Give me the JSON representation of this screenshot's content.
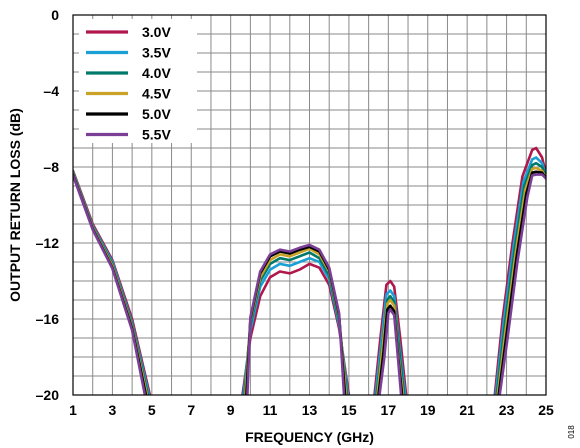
{
  "chart_data": {
    "type": "line",
    "xlabel": "FREQUENCY (GHz)",
    "ylabel": "OUTPUT RETURN LOSS (dB)",
    "xlim": [
      1,
      25
    ],
    "ylim": [
      -20,
      0
    ],
    "x_ticks": [
      1,
      3,
      5,
      7,
      9,
      11,
      13,
      15,
      17,
      19,
      21,
      23,
      25
    ],
    "y_ticks": [
      0,
      -4,
      -8,
      -12,
      -16,
      -20
    ],
    "x_tick_labels": [
      "1",
      "3",
      "5",
      "7",
      "9",
      "11",
      "13",
      "15",
      "17",
      "19",
      "21",
      "23",
      "25"
    ],
    "y_tick_labels": [
      "0",
      "–4",
      "–8",
      "–12",
      "–16",
      "–20"
    ],
    "grid": true,
    "legend_position": "top-left",
    "figure_code": "018",
    "series": [
      {
        "name": "3.0V",
        "color": "#b0174d",
        "segments": [
          [
            [
              1,
              -8.2
            ],
            [
              2,
              -11
            ],
            [
              3,
              -12.9
            ],
            [
              4,
              -16
            ],
            [
              4.9,
              -20
            ]
          ],
          [
            [
              9.6,
              -20
            ],
            [
              10,
              -17
            ],
            [
              10.5,
              -14.8
            ],
            [
              11,
              -13.8
            ],
            [
              11.5,
              -13.5
            ],
            [
              12,
              -13.6
            ],
            [
              12.5,
              -13.4
            ],
            [
              13,
              -13.1
            ],
            [
              13.5,
              -13.3
            ],
            [
              14,
              -14.2
            ],
            [
              14.5,
              -16.5
            ],
            [
              15,
              -20
            ]
          ],
          [
            [
              16.3,
              -20
            ],
            [
              16.6,
              -17
            ],
            [
              16.9,
              -14.2
            ],
            [
              17.1,
              -14
            ],
            [
              17.3,
              -14.3
            ],
            [
              17.6,
              -17
            ],
            [
              17.9,
              -20
            ]
          ],
          [
            [
              22.4,
              -20
            ],
            [
              22.8,
              -16
            ],
            [
              23.3,
              -12
            ],
            [
              23.8,
              -8.5
            ],
            [
              24.3,
              -7.1
            ],
            [
              24.5,
              -7
            ],
            [
              24.8,
              -7.5
            ],
            [
              25,
              -8.4
            ]
          ]
        ]
      },
      {
        "name": "3.5V",
        "color": "#1aa0d4",
        "segments": [
          [
            [
              1,
              -8.25
            ],
            [
              2,
              -11.1
            ],
            [
              3,
              -13
            ],
            [
              4,
              -16.2
            ],
            [
              4.85,
              -20
            ]
          ],
          [
            [
              9.65,
              -20
            ],
            [
              10,
              -16.6
            ],
            [
              10.5,
              -14.3
            ],
            [
              11,
              -13.4
            ],
            [
              11.5,
              -13.1
            ],
            [
              12,
              -13.2
            ],
            [
              12.5,
              -13
            ],
            [
              13,
              -12.8
            ],
            [
              13.5,
              -13
            ],
            [
              14,
              -13.9
            ],
            [
              14.5,
              -16.3
            ],
            [
              14.95,
              -20
            ]
          ],
          [
            [
              16.35,
              -20
            ],
            [
              16.65,
              -17.2
            ],
            [
              16.9,
              -14.7
            ],
            [
              17.1,
              -14.5
            ],
            [
              17.3,
              -14.8
            ],
            [
              17.55,
              -17.3
            ],
            [
              17.85,
              -20
            ]
          ],
          [
            [
              22.45,
              -20
            ],
            [
              22.85,
              -16.2
            ],
            [
              23.35,
              -12.2
            ],
            [
              23.85,
              -8.8
            ],
            [
              24.3,
              -7.6
            ],
            [
              24.5,
              -7.5
            ],
            [
              24.8,
              -7.8
            ],
            [
              25,
              -8.5
            ]
          ]
        ]
      },
      {
        "name": "4.0V",
        "color": "#00796b",
        "segments": [
          [
            [
              1,
              -8.3
            ],
            [
              2,
              -11.15
            ],
            [
              3,
              -13.1
            ],
            [
              4,
              -16.3
            ],
            [
              4.8,
              -20
            ]
          ],
          [
            [
              9.7,
              -20
            ],
            [
              10,
              -16.3
            ],
            [
              10.5,
              -14
            ],
            [
              11,
              -13.1
            ],
            [
              11.5,
              -12.8
            ],
            [
              12,
              -12.9
            ],
            [
              12.5,
              -12.7
            ],
            [
              13,
              -12.5
            ],
            [
              13.5,
              -12.8
            ],
            [
              14,
              -13.7
            ],
            [
              14.5,
              -16.1
            ],
            [
              14.9,
              -20
            ]
          ],
          [
            [
              16.4,
              -20
            ],
            [
              16.7,
              -17.4
            ],
            [
              16.95,
              -15
            ],
            [
              17.1,
              -14.8
            ],
            [
              17.3,
              -15.1
            ],
            [
              17.55,
              -17.6
            ],
            [
              17.8,
              -20
            ]
          ],
          [
            [
              22.5,
              -20
            ],
            [
              22.9,
              -16.4
            ],
            [
              23.4,
              -12.4
            ],
            [
              23.9,
              -9
            ],
            [
              24.3,
              -7.9
            ],
            [
              24.5,
              -7.8
            ],
            [
              24.8,
              -8
            ],
            [
              25,
              -8.5
            ]
          ]
        ]
      },
      {
        "name": "4.5V",
        "color": "#c9a227",
        "segments": [
          [
            [
              1,
              -8.35
            ],
            [
              2,
              -11.2
            ],
            [
              3,
              -13.2
            ],
            [
              4,
              -16.4
            ],
            [
              4.75,
              -20
            ]
          ],
          [
            [
              9.75,
              -20
            ],
            [
              10,
              -16.1
            ],
            [
              10.5,
              -13.8
            ],
            [
              11,
              -12.9
            ],
            [
              11.5,
              -12.6
            ],
            [
              12,
              -12.7
            ],
            [
              12.5,
              -12.5
            ],
            [
              13,
              -12.3
            ],
            [
              13.5,
              -12.6
            ],
            [
              14,
              -13.5
            ],
            [
              14.5,
              -15.9
            ],
            [
              14.85,
              -20
            ]
          ],
          [
            [
              16.45,
              -20
            ],
            [
              16.7,
              -17.6
            ],
            [
              16.95,
              -15.2
            ],
            [
              17.1,
              -15
            ],
            [
              17.3,
              -15.3
            ],
            [
              17.5,
              -17.8
            ],
            [
              17.75,
              -20
            ]
          ],
          [
            [
              22.55,
              -20
            ],
            [
              22.95,
              -16.6
            ],
            [
              23.45,
              -12.6
            ],
            [
              23.95,
              -9.2
            ],
            [
              24.3,
              -8.1
            ],
            [
              24.5,
              -8.05
            ],
            [
              24.8,
              -8.2
            ],
            [
              25,
              -8.6
            ]
          ]
        ]
      },
      {
        "name": "5.0V",
        "color": "#000000",
        "segments": [
          [
            [
              1,
              -8.4
            ],
            [
              2,
              -11.25
            ],
            [
              3,
              -13.3
            ],
            [
              4,
              -16.5
            ],
            [
              4.7,
              -20
            ]
          ],
          [
            [
              9.8,
              -20
            ],
            [
              10,
              -16
            ],
            [
              10.5,
              -13.6
            ],
            [
              11,
              -12.7
            ],
            [
              11.5,
              -12.45
            ],
            [
              12,
              -12.55
            ],
            [
              12.5,
              -12.35
            ],
            [
              13,
              -12.2
            ],
            [
              13.5,
              -12.45
            ],
            [
              14,
              -13.4
            ],
            [
              14.5,
              -15.8
            ],
            [
              14.8,
              -20
            ]
          ],
          [
            [
              16.5,
              -20
            ],
            [
              16.75,
              -17.8
            ],
            [
              16.95,
              -15.5
            ],
            [
              17.1,
              -15.3
            ],
            [
              17.3,
              -15.6
            ],
            [
              17.5,
              -18
            ],
            [
              17.7,
              -20
            ]
          ],
          [
            [
              22.6,
              -20
            ],
            [
              23,
              -16.8
            ],
            [
              23.5,
              -12.8
            ],
            [
              24,
              -9.4
            ],
            [
              24.3,
              -8.3
            ],
            [
              24.5,
              -8.25
            ],
            [
              24.8,
              -8.3
            ],
            [
              25,
              -8.6
            ]
          ]
        ]
      },
      {
        "name": "5.5V",
        "color": "#7b3f98",
        "segments": [
          [
            [
              1,
              -8.45
            ],
            [
              2,
              -11.3
            ],
            [
              3,
              -13.35
            ],
            [
              4,
              -16.6
            ],
            [
              4.65,
              -20
            ]
          ],
          [
            [
              9.85,
              -20
            ],
            [
              10,
              -15.9
            ],
            [
              10.5,
              -13.5
            ],
            [
              11,
              -12.6
            ],
            [
              11.5,
              -12.35
            ],
            [
              12,
              -12.45
            ],
            [
              12.5,
              -12.25
            ],
            [
              13,
              -12.1
            ],
            [
              13.5,
              -12.35
            ],
            [
              14,
              -13.3
            ],
            [
              14.5,
              -15.7
            ],
            [
              14.75,
              -20
            ]
          ],
          [
            [
              16.55,
              -20
            ],
            [
              16.8,
              -18
            ],
            [
              17,
              -15.7
            ],
            [
              17.1,
              -15.5
            ],
            [
              17.3,
              -15.8
            ],
            [
              17.5,
              -18.2
            ],
            [
              17.65,
              -20
            ]
          ],
          [
            [
              22.65,
              -20
            ],
            [
              23.05,
              -17
            ],
            [
              23.55,
              -13
            ],
            [
              24.05,
              -9.6
            ],
            [
              24.3,
              -8.45
            ],
            [
              24.5,
              -8.4
            ],
            [
              24.8,
              -8.4
            ],
            [
              25,
              -8.6
            ]
          ]
        ]
      }
    ]
  }
}
